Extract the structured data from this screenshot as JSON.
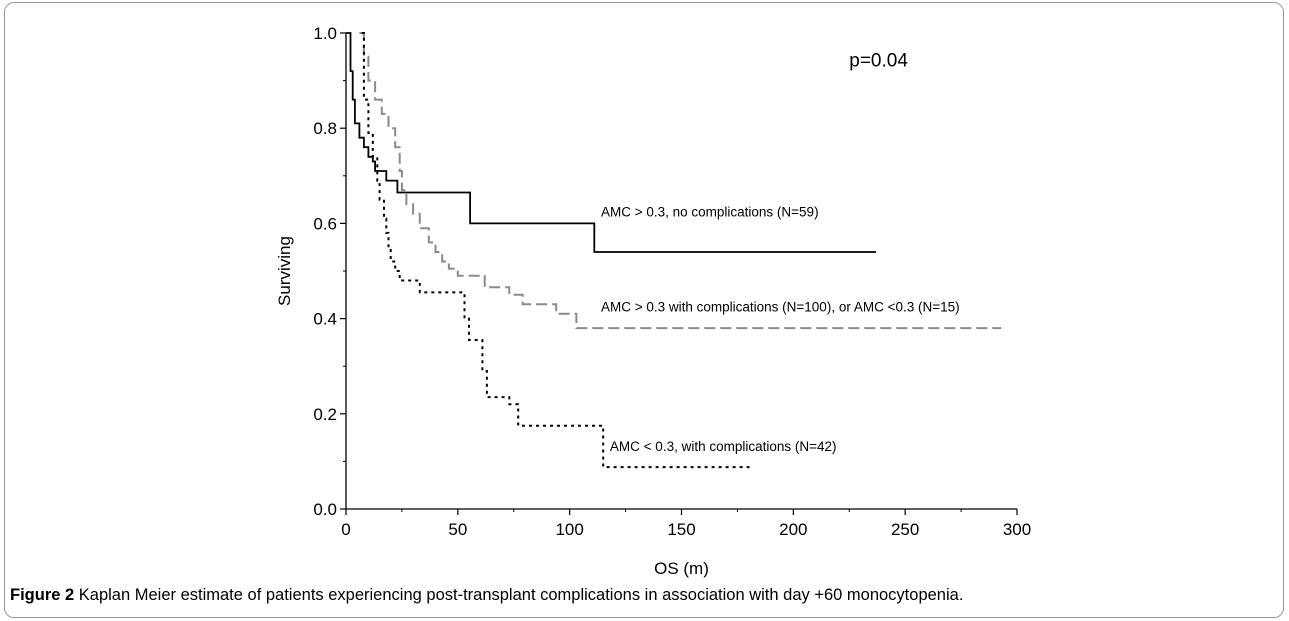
{
  "caption": {
    "label": "Figure 2",
    "text": "Kaplan Meier estimate of patients experiencing post-transplant complications in association with day +60 monocytopenia."
  },
  "chart_data": {
    "type": "line",
    "subtype": "kaplan-meier-step",
    "xlabel": "OS (m)",
    "ylabel": "Surviving",
    "xlim": [
      0,
      300
    ],
    "ylim": [
      0,
      1.0
    ],
    "xticks": [
      0,
      50,
      100,
      150,
      200,
      250,
      300
    ],
    "yticks": [
      0.0,
      0.2,
      0.4,
      0.6,
      0.8,
      1.0
    ],
    "grid": false,
    "legend": "none",
    "annotations": [
      {
        "text": "p=0.04",
        "x": 225,
        "y": 0.93,
        "kind": "pval"
      },
      {
        "text": "AMC > 0.3, no complications (N=59)",
        "x": 114,
        "y": 0.615,
        "kind": "annot"
      },
      {
        "text": "AMC > 0.3 with complications (N=100), or AMC <0.3 (N=15)",
        "x": 114,
        "y": 0.415,
        "kind": "annot"
      },
      {
        "text": "AMC < 0.3, with complications (N=42)",
        "x": 118,
        "y": 0.122,
        "kind": "annot"
      }
    ],
    "series": [
      {
        "style": "solid",
        "color": "#000000",
        "points": [
          [
            0,
            1.0
          ],
          [
            2,
            0.92
          ],
          [
            3,
            0.86
          ],
          [
            4,
            0.81
          ],
          [
            6,
            0.78
          ],
          [
            8,
            0.76
          ],
          [
            10,
            0.74
          ],
          [
            12,
            0.73
          ],
          [
            13,
            0.71
          ],
          [
            17,
            0.71
          ],
          [
            18,
            0.69
          ],
          [
            22,
            0.69
          ],
          [
            23,
            0.665
          ],
          [
            55,
            0.665
          ],
          [
            55.5,
            0.6
          ],
          [
            110,
            0.6
          ],
          [
            111,
            0.54
          ],
          [
            237,
            0.54
          ]
        ]
      },
      {
        "style": "dashed",
        "color": "#8a8a8a",
        "points": [
          [
            6,
            1.0
          ],
          [
            8,
            0.95
          ],
          [
            10,
            0.9
          ],
          [
            13,
            0.86
          ],
          [
            16,
            0.83
          ],
          [
            19,
            0.8
          ],
          [
            22,
            0.76
          ],
          [
            24,
            0.71
          ],
          [
            25,
            0.67
          ],
          [
            27,
            0.64
          ],
          [
            30,
            0.62
          ],
          [
            33,
            0.59
          ],
          [
            37,
            0.56
          ],
          [
            40,
            0.54
          ],
          [
            43,
            0.52
          ],
          [
            46,
            0.505
          ],
          [
            50,
            0.49
          ],
          [
            61,
            0.49
          ],
          [
            62,
            0.466
          ],
          [
            72,
            0.466
          ],
          [
            73,
            0.45
          ],
          [
            78,
            0.45
          ],
          [
            79,
            0.43
          ],
          [
            93,
            0.43
          ],
          [
            94,
            0.41
          ],
          [
            102,
            0.41
          ],
          [
            103,
            0.38
          ],
          [
            293,
            0.38
          ]
        ]
      },
      {
        "style": "dotted",
        "color": "#000000",
        "points": [
          [
            7,
            1.0
          ],
          [
            8,
            0.86
          ],
          [
            10,
            0.79
          ],
          [
            12,
            0.74
          ],
          [
            14,
            0.69
          ],
          [
            15,
            0.65
          ],
          [
            17,
            0.61
          ],
          [
            18,
            0.58
          ],
          [
            19,
            0.55
          ],
          [
            20,
            0.52
          ],
          [
            22,
            0.5
          ],
          [
            24,
            0.48
          ],
          [
            32,
            0.48
          ],
          [
            33,
            0.455
          ],
          [
            52,
            0.455
          ],
          [
            53,
            0.4
          ],
          [
            55,
            0.355
          ],
          [
            60,
            0.355
          ],
          [
            61,
            0.29
          ],
          [
            63,
            0.235
          ],
          [
            72,
            0.235
          ],
          [
            73,
            0.22
          ],
          [
            76,
            0.22
          ],
          [
            77,
            0.175
          ],
          [
            114,
            0.175
          ],
          [
            115,
            0.088
          ],
          [
            182,
            0.088
          ]
        ]
      }
    ]
  }
}
